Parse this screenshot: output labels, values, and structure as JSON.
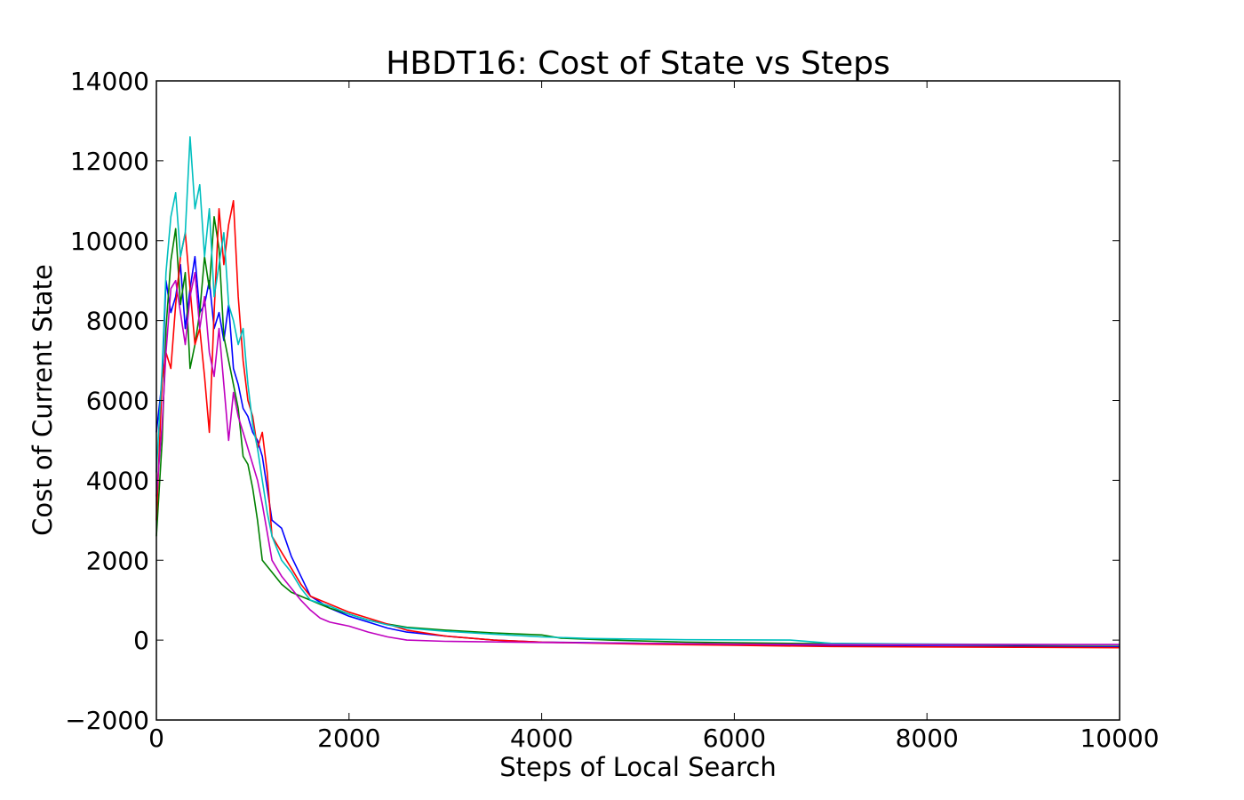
{
  "chart_data": {
    "type": "line",
    "title": "HBDT16: Cost of State vs Steps",
    "xlabel": "Steps of Local Search",
    "ylabel": "Cost of Current State",
    "xlim": [
      0,
      10000
    ],
    "ylim": [
      -2000,
      14000
    ],
    "xticks": [
      0,
      2000,
      4000,
      6000,
      8000,
      10000
    ],
    "xtick_labels": [
      "0",
      "2000",
      "4000",
      "6000",
      "8000",
      "10000"
    ],
    "yticks": [
      -2000,
      0,
      2000,
      4000,
      6000,
      8000,
      10000,
      12000,
      14000
    ],
    "ytick_labels": [
      "−2000",
      "0",
      "2000",
      "4000",
      "6000",
      "8000",
      "10000",
      "12000",
      "14000"
    ],
    "grid": false,
    "series": [
      {
        "color": "#0000ff",
        "x": [
          0,
          60,
          100,
          150,
          200,
          250,
          300,
          350,
          400,
          450,
          500,
          550,
          600,
          650,
          700,
          750,
          800,
          850,
          900,
          950,
          1000,
          1050,
          1100,
          1150,
          1200,
          1300,
          1400,
          1500,
          1600,
          1700,
          1800,
          1900,
          2000,
          2200,
          2400,
          2600,
          3000,
          3500,
          4000,
          5000,
          6000,
          7000,
          8000,
          9000,
          10000
        ],
        "y": [
          5200,
          6500,
          9000,
          8200,
          8600,
          9400,
          7800,
          8800,
          9600,
          8200,
          8400,
          9000,
          7800,
          8200,
          7500,
          8400,
          6800,
          6400,
          5800,
          5600,
          5200,
          5000,
          4600,
          3800,
          3000,
          2800,
          2100,
          1600,
          1100,
          950,
          800,
          700,
          600,
          450,
          300,
          200,
          100,
          0,
          -50,
          -80,
          -120,
          -140,
          -150,
          -160,
          -170
        ]
      },
      {
        "color": "#008000",
        "x": [
          0,
          60,
          100,
          150,
          200,
          250,
          300,
          350,
          400,
          450,
          500,
          550,
          600,
          650,
          700,
          750,
          800,
          850,
          900,
          950,
          1000,
          1050,
          1100,
          1200,
          1300,
          1400,
          1600,
          1800,
          2000,
          2200,
          2400,
          2600,
          3000,
          3500,
          4000,
          4200,
          4700,
          5500,
          6500,
          7500,
          8500,
          10000
        ],
        "y": [
          2600,
          5000,
          7800,
          9500,
          10300,
          8400,
          9200,
          6800,
          7400,
          8200,
          9600,
          8800,
          10600,
          9800,
          7600,
          7000,
          6400,
          5800,
          4600,
          4400,
          3800,
          3000,
          2000,
          1700,
          1400,
          1200,
          1000,
          800,
          650,
          500,
          400,
          320,
          250,
          180,
          130,
          50,
          0,
          -50,
          -80,
          -100,
          -120,
          -130
        ]
      },
      {
        "color": "#ff0000",
        "x": [
          0,
          60,
          100,
          150,
          200,
          250,
          300,
          350,
          400,
          450,
          500,
          550,
          600,
          650,
          700,
          750,
          800,
          850,
          900,
          950,
          1000,
          1050,
          1100,
          1150,
          1200,
          1300,
          1400,
          1500,
          1600,
          1800,
          2000,
          2200,
          2400,
          2600,
          3000,
          3500,
          4000,
          5000,
          6000,
          7000,
          8000,
          9000,
          10000
        ],
        "y": [
          3000,
          6500,
          7200,
          6800,
          8400,
          9600,
          10200,
          8800,
          7400,
          7800,
          6600,
          5200,
          8200,
          10800,
          9400,
          10400,
          11000,
          8600,
          7000,
          6000,
          5600,
          4800,
          5200,
          4200,
          2600,
          2200,
          1800,
          1400,
          1100,
          900,
          700,
          550,
          400,
          250,
          100,
          0,
          -50,
          -100,
          -130,
          -160,
          -170,
          -180,
          -190
        ]
      },
      {
        "color": "#00bfbf",
        "x": [
          0,
          60,
          100,
          150,
          200,
          250,
          300,
          350,
          400,
          450,
          500,
          550,
          600,
          650,
          700,
          750,
          800,
          850,
          900,
          950,
          1000,
          1050,
          1100,
          1150,
          1200,
          1300,
          1400,
          1500,
          1600,
          1800,
          2000,
          2200,
          2400,
          2600,
          3000,
          3500,
          4000,
          4500,
          5500,
          6580,
          7000,
          8000,
          9000,
          10000
        ],
        "y": [
          4200,
          6800,
          9200,
          10600,
          11200,
          9600,
          10200,
          12600,
          10800,
          11400,
          9600,
          10800,
          8600,
          9400,
          10200,
          8400,
          8000,
          7400,
          7800,
          6400,
          5400,
          4800,
          4000,
          3200,
          2600,
          2000,
          1700,
          1300,
          1000,
          850,
          650,
          500,
          380,
          300,
          220,
          150,
          80,
          40,
          10,
          0,
          -80,
          -100,
          -110,
          -120
        ]
      },
      {
        "color": "#bf00bf",
        "x": [
          0,
          60,
          100,
          150,
          200,
          250,
          300,
          350,
          400,
          450,
          500,
          550,
          600,
          650,
          700,
          750,
          800,
          850,
          900,
          950,
          1000,
          1050,
          1100,
          1150,
          1200,
          1300,
          1400,
          1500,
          1600,
          1700,
          1800,
          2000,
          2200,
          2400,
          2600,
          3000,
          4000,
          5000,
          6000,
          7000,
          8000,
          9000,
          10000
        ],
        "y": [
          3600,
          5400,
          7200,
          8800,
          9000,
          8200,
          7400,
          8600,
          9200,
          7800,
          8600,
          7200,
          6600,
          7800,
          6400,
          5000,
          6200,
          5600,
          5200,
          4800,
          4400,
          4000,
          3400,
          2700,
          2000,
          1600,
          1300,
          1000,
          750,
          550,
          450,
          350,
          200,
          80,
          0,
          -30,
          -60,
          -80,
          -100,
          -110,
          -110,
          -110,
          -110
        ]
      }
    ]
  }
}
